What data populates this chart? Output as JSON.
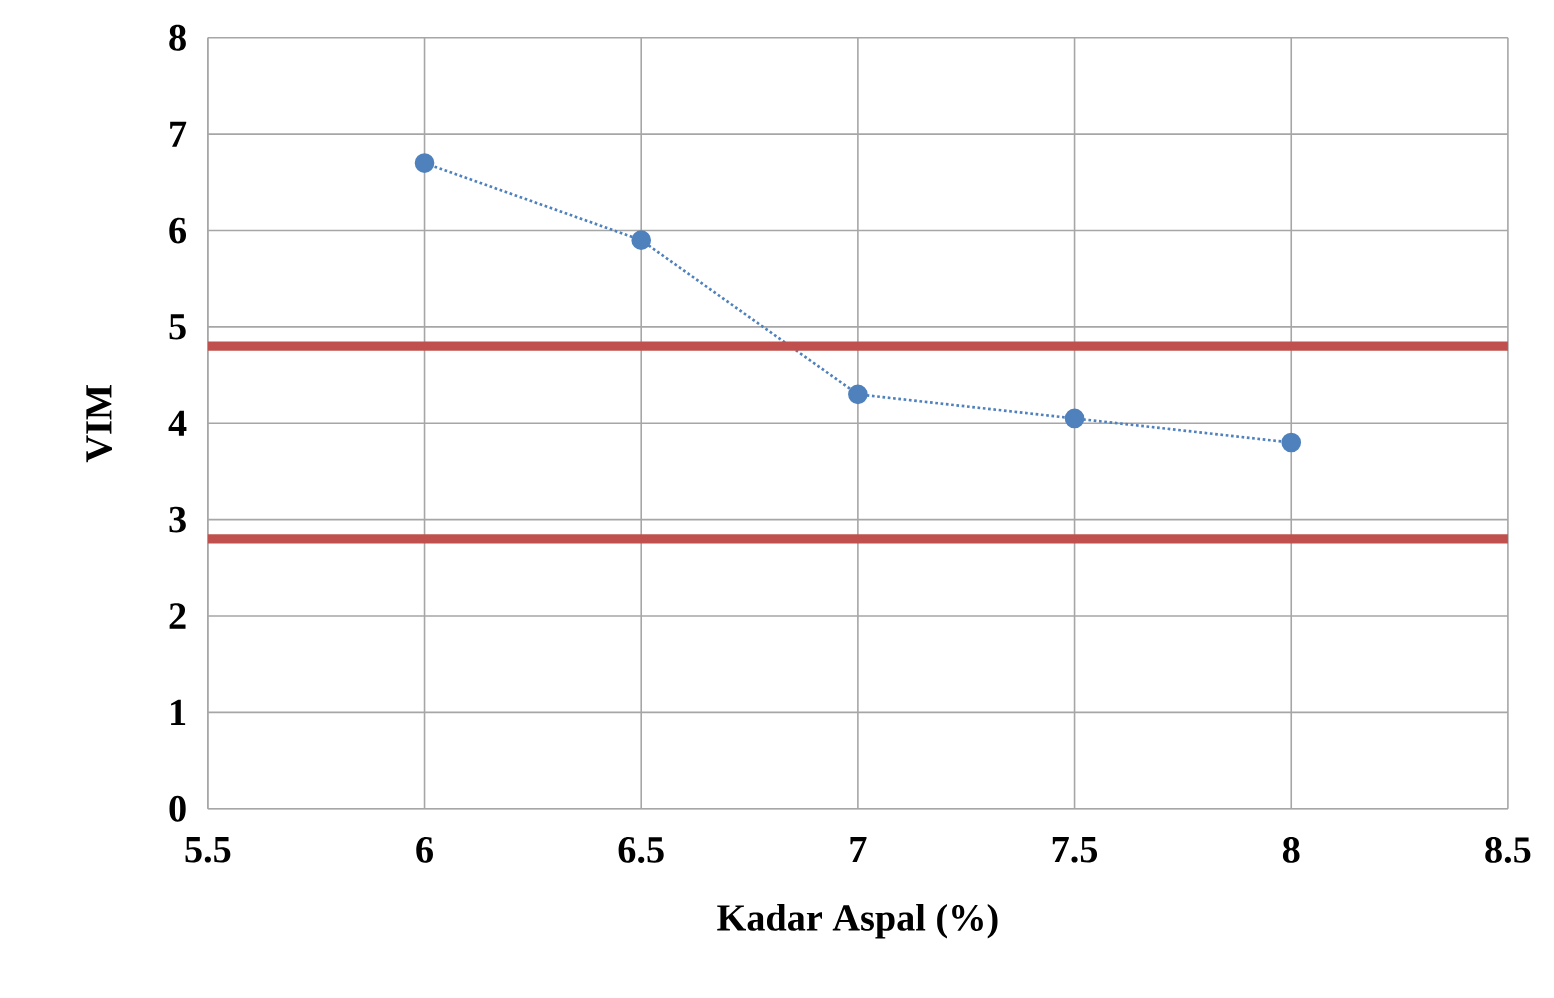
{
  "chart_data": {
    "type": "line",
    "xlabel": "Kadar Aspal (%)",
    "ylabel": "VIM",
    "x": [
      6,
      6.5,
      7,
      7.5,
      8
    ],
    "series": [
      {
        "color": "#4f81bd",
        "values": [
          6.7,
          5.9,
          4.3,
          4.05,
          3.8
        ]
      }
    ],
    "xlim": [
      5.5,
      8.5
    ],
    "xticks": [
      5.5,
      6,
      6.5,
      7,
      7.5,
      8,
      8.5
    ],
    "ylim": [
      0,
      8
    ],
    "yticks": [
      0,
      1,
      2,
      3,
      4,
      5,
      6,
      7,
      8
    ],
    "ref_lines": [
      {
        "axis": "y",
        "value": 4.8,
        "color": "#c0504d"
      },
      {
        "axis": "y",
        "value": 2.8,
        "color": "#c0504d"
      }
    ],
    "grid": true,
    "marker": "circle",
    "line_style": "dotted"
  }
}
